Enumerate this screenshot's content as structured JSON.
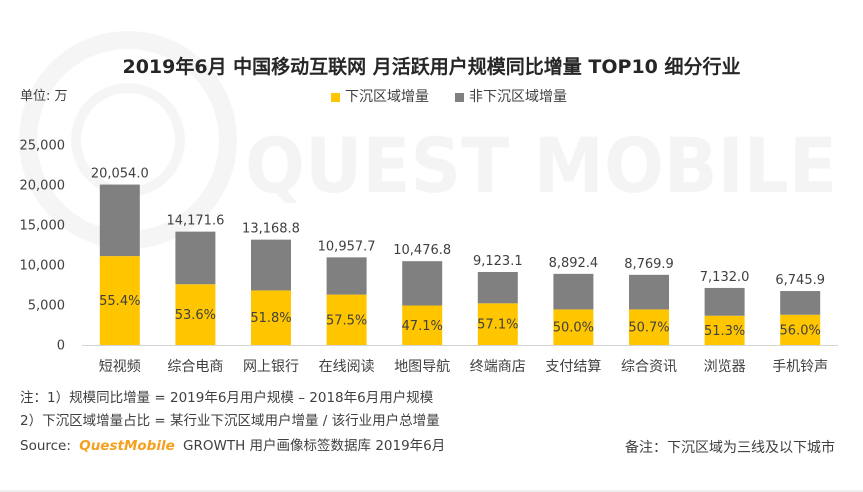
{
  "watermark": {
    "text": "QUEST MOBILE"
  },
  "chart_data": {
    "type": "bar",
    "stacked": true,
    "title": "2019年6月 中国移动互联网 月活跃用户规模同比增量 TOP10 细分行业",
    "unit_label": "单位: 万",
    "categories": [
      "短视频",
      "综合电商",
      "网上银行",
      "在线阅读",
      "地图导航",
      "终端商店",
      "支付结算",
      "综合资讯",
      "浏览器",
      "手机铃声"
    ],
    "series": [
      {
        "name": "下沉区域增量",
        "color": "#FFC600",
        "values": [
          11109.9,
          7596.0,
          6821.4,
          6300.7,
          4934.6,
          5209.3,
          4446.2,
          4446.3,
          3658.7,
          3777.7
        ]
      },
      {
        "name": "非下沉区域增量",
        "color": "#808080",
        "values": [
          8944.1,
          6575.6,
          6347.4,
          4657.0,
          5542.2,
          3913.8,
          4446.2,
          4323.6,
          3473.3,
          2968.2
        ]
      }
    ],
    "total_labels": [
      "20,054.0",
      "14,171.6",
      "13,168.8",
      "10,957.7",
      "10,476.8",
      "9,123.1",
      "8,892.4",
      "8,769.9",
      "7,132.0",
      "6,745.9"
    ],
    "share_labels": [
      "55.4%",
      "53.6%",
      "51.8%",
      "57.5%",
      "47.1%",
      "57.1%",
      "50.0%",
      "50.7%",
      "51.3%",
      "56.0%"
    ],
    "yticks": [
      0,
      5000,
      10000,
      15000,
      20000,
      25000
    ],
    "ytick_labels": [
      "0",
      "5,000",
      "10,000",
      "15,000",
      "20,000",
      "25,000"
    ],
    "ylim": [
      0,
      25000
    ],
    "grid": false,
    "legend": "top-center"
  },
  "notes": {
    "line1": "注：1）规模同比增量 = 2019年6月用户规模 – 2018年6月用户规模",
    "line2": "2）下沉区域增量占比 = 某行业下沉区域用户增量 / 该行业用户总增量",
    "source_prefix": "Source:",
    "source_brand": "QuestMobile",
    "source_rest": "GROWTH 用户画像标签数据库 2019年6月",
    "remark": "备注：下沉区域为三线及以下城市"
  },
  "colors": {
    "brand": "#F5A01E",
    "text": "#404040"
  }
}
